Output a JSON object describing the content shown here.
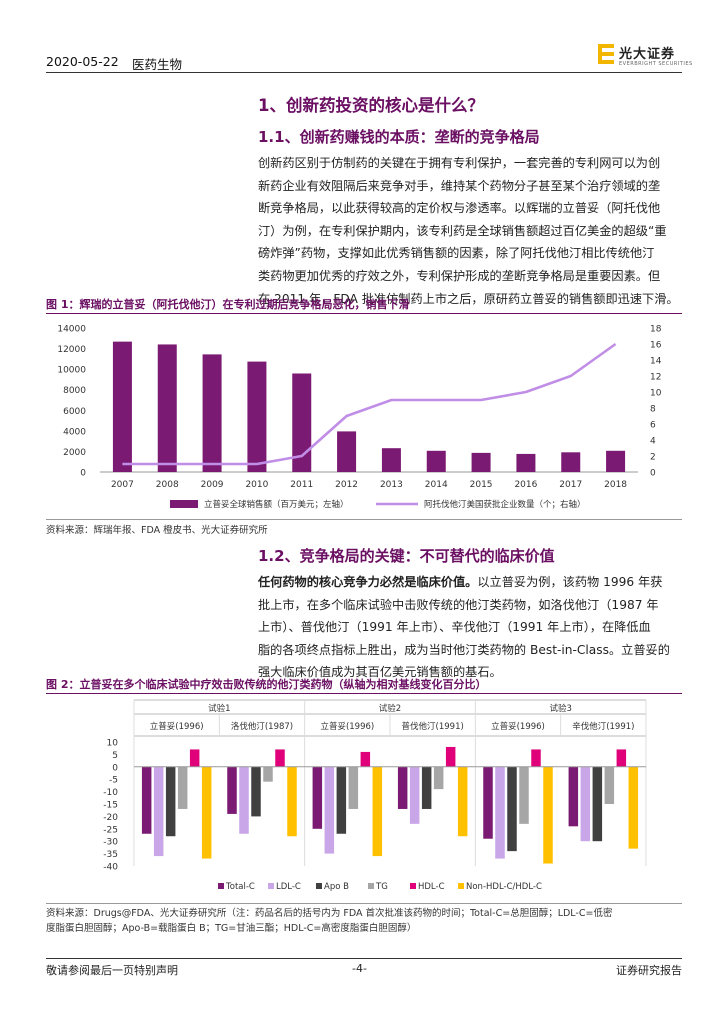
{
  "header": {
    "date": "2020-05-22",
    "sector": "医药生物",
    "logo_text": "光大证券",
    "logo_sub": "EVERBRIGHT SECURITIES"
  },
  "section1": {
    "heading": "1、创新药投资的核心是什么？",
    "subheading": "1.1、创新药赚钱的本质：垄断的竞争格局",
    "paragraph_lines": [
      "创新药区别于仿制药的关键在于拥有专利保护，一套完善的专利网可以为创",
      "新药企业有效阻隔后来竞争对手，维持某个药物分子甚至某个治疗领域的垄",
      "断竞争格局，以此获得较高的定价权与渗透率。以辉瑞的立普妥（阿托伐他",
      "汀）为例，在专利保护期内，该专利药是全球销售额超过百亿美金的超级“重",
      "磅炸弹”药物，支撑如此优秀销售额的因素，除了阿托伐他汀相比传统他汀",
      "类药物更加优秀的疗效之外，专利保护形成的垄断竞争格局是重要因素。但",
      "在 2011 年，FDA 批准仿制药上市之后，原研药立普妥的销售额即迅速下滑。"
    ]
  },
  "figure1": {
    "title": "图 1：辉瑞的立普妥（阿托伐他汀）在专利过期后竞争格局恶化，销售下滑",
    "source": "资料来源：辉瑞年报、FDA 橙皮书、光大证券研究所"
  },
  "section2": {
    "subheading": "1.2、竞争格局的关键：不可替代的临床价值",
    "lead": "任何药物的核心竞争力必然是临床价值。",
    "paragraph_first_rest": "以立普妥为例，该药物 1996 年获",
    "paragraph_lines": [
      "批上市，在多个临床试验中击败传统的他汀类药物，如洛伐他汀（1987 年",
      "上市）、普伐他汀（1991 年上市）、辛伐他汀（1991 年上市），在降低血",
      "脂的各项终点指标上胜出，成为当时他汀类药物的 Best-in-Class。立普妥的",
      "强大临床价值成为其百亿美元销售额的基石。"
    ]
  },
  "figure2": {
    "title": "图 2：立普妥在多个临床试验中疗效击败传统的他汀类药物（纵轴为相对基线变化百分比）",
    "source_lines": [
      "资料来源：Drugs@FDA、光大证券研究所（注：药品名后的括号内为 FDA 首次批准该药物的时间；Total-C=总胆固醇；LDL-C=低密",
      "度脂蛋白胆固醇；Apo-B=载脂蛋白 B；TG=甘油三酯；HDL-C=高密度脂蛋白胆固醇）"
    ]
  },
  "footer": {
    "left": "敬请参阅最后一页特别声明",
    "page": "-4-",
    "right": "证券研究报告"
  },
  "colors": {
    "accent": "#6b0f63",
    "bar_primary": "#7b1a72",
    "line_secondary": "#c08ee6",
    "totalc": "#7b1a72",
    "ldlc": "#c9a6e8",
    "apob": "#404040",
    "tg": "#a6a6a6",
    "hdlc": "#e0007a",
    "nonhdl": "#ffc000"
  },
  "chart_data": [
    {
      "type": "bar",
      "categories": [
        "2007",
        "2008",
        "2009",
        "2010",
        "2011",
        "2012",
        "2013",
        "2014",
        "2015",
        "2016",
        "2017",
        "2018"
      ],
      "series": [
        {
          "name": "立普妥全球销售额（百万美元；左轴）",
          "type": "bar",
          "axis": "left",
          "values": [
            12675,
            12401,
            11434,
            10733,
            9577,
            3948,
            2315,
            2061,
            1860,
            1758,
            1915,
            2062
          ]
        },
        {
          "name": "阿托伐他汀美国获批企业数量（个；右轴）",
          "type": "line",
          "axis": "right",
          "values": [
            1,
            1,
            1,
            1,
            2,
            7,
            9,
            9,
            9,
            10,
            12,
            16
          ]
        }
      ],
      "ylim": [
        0,
        14000
      ],
      "yticks": [
        0,
        2000,
        4000,
        6000,
        8000,
        10000,
        12000,
        14000
      ],
      "y2lim": [
        0,
        18
      ],
      "y2ticks": [
        0,
        2,
        4,
        6,
        8,
        10,
        12,
        14,
        16,
        18
      ],
      "legend": "bottom"
    },
    {
      "type": "bar",
      "trials": [
        {
          "name": "试验1",
          "drugs": [
            {
              "label": "立普妥(1996)",
              "values": [
                -27,
                -36,
                -28,
                -17,
                7,
                -37
              ]
            },
            {
              "label": "洛伐他汀(1987)",
              "values": [
                -19,
                -27,
                -20,
                -6,
                7,
                -28
              ]
            }
          ]
        },
        {
          "name": "试验2",
          "drugs": [
            {
              "label": "立普妥(1996)",
              "values": [
                -25,
                -35,
                -27,
                -17,
                6,
                -36
              ]
            },
            {
              "label": "普伐他汀(1991)",
              "values": [
                -17,
                -23,
                -17,
                -9,
                8,
                -28
              ]
            }
          ]
        },
        {
          "name": "试验3",
          "drugs": [
            {
              "label": "立普妥(1996)",
              "values": [
                -29,
                -37,
                -34,
                -23,
                7,
                -39
              ]
            },
            {
              "label": "辛伐他汀(1991)",
              "values": [
                -24,
                -30,
                -30,
                -15,
                7,
                -33
              ]
            }
          ]
        }
      ],
      "series_names": [
        "Total-C",
        "LDL-C",
        "Apo B",
        "TG",
        "HDL-C",
        "Non-HDL-C/HDL-C"
      ],
      "ylim": [
        -40,
        10
      ],
      "yticks": [
        10,
        5,
        0,
        -5,
        -10,
        -15,
        -20,
        -25,
        -30,
        -35,
        -40
      ],
      "legend": "bottom"
    }
  ]
}
